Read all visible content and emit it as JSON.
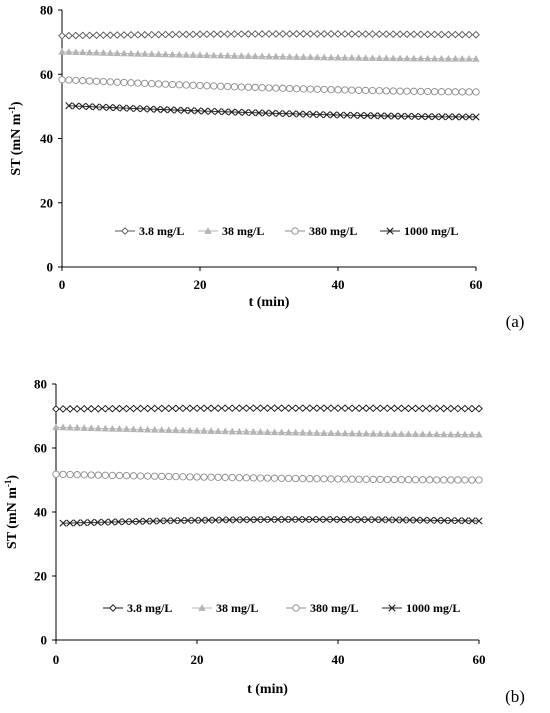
{
  "chart_data": [
    {
      "type": "line",
      "panel_label": "(a)",
      "xlabel": "t (min)",
      "ylabel": "ST (mN m",
      "ylabel_sup": "-1",
      "ylabel_close": ")",
      "xlim": [
        0,
        60
      ],
      "ylim": [
        0,
        80
      ],
      "xticks": [
        0,
        20,
        40,
        60
      ],
      "yticks": [
        0,
        20,
        40,
        60,
        80
      ],
      "grid": false,
      "legend_position": "lower-center",
      "series": [
        {
          "name": "3.8 mg/L",
          "marker": "diamond",
          "color": "#555555",
          "x_start": 0,
          "x_end": 60,
          "y_start": 72,
          "y_end": 72.3,
          "y_bump": 0.4
        },
        {
          "name": "38 mg/L",
          "marker": "triangle",
          "color": "#b4b4b4",
          "x_start": 0,
          "x_end": 60,
          "y_start": 67,
          "y_end": 64.8,
          "y_bump": 0
        },
        {
          "name": "380 mg/L",
          "marker": "circle",
          "color": "#8c8c8c",
          "x_start": 0,
          "x_end": 60,
          "y_start": 58.3,
          "y_end": 54.5,
          "y_bump": 0
        },
        {
          "name": "1000 mg/L",
          "marker": "x",
          "color": "#222222",
          "x_start": 1,
          "x_end": 60,
          "y_start": 50.2,
          "y_end": 46.7,
          "y_bump": 0
        }
      ]
    },
    {
      "type": "line",
      "panel_label": "(b)",
      "xlabel": "t (min)",
      "ylabel": "ST (mN m",
      "ylabel_sup": "-1",
      "ylabel_close": ")",
      "xlim": [
        0,
        60
      ],
      "ylim": [
        0,
        80
      ],
      "xticks": [
        0,
        20,
        40,
        60
      ],
      "yticks": [
        0,
        20,
        40,
        60,
        80
      ],
      "grid": false,
      "legend_position": "lower-center",
      "series": [
        {
          "name": "3.8 mg/L",
          "marker": "diamond",
          "color": "#111111",
          "x_start": 0,
          "x_end": 60,
          "y_start": 72.2,
          "y_end": 72.3,
          "y_bump": 0.2
        },
        {
          "name": "38 mg/L",
          "marker": "triangle",
          "color": "#b4b4b4",
          "x_start": 0,
          "x_end": 60,
          "y_start": 66.5,
          "y_end": 64.2,
          "y_bump": 0
        },
        {
          "name": "380 mg/L",
          "marker": "circle",
          "color": "#8c8c8c",
          "x_start": 0,
          "x_end": 60,
          "y_start": 51.8,
          "y_end": 50.0,
          "y_bump": 0
        },
        {
          "name": "1000 mg/L",
          "marker": "x",
          "color": "#222222",
          "x_start": 1,
          "x_end": 60,
          "y_start": 36.5,
          "y_end": 37.2,
          "y_bump": 0.8
        }
      ]
    }
  ]
}
